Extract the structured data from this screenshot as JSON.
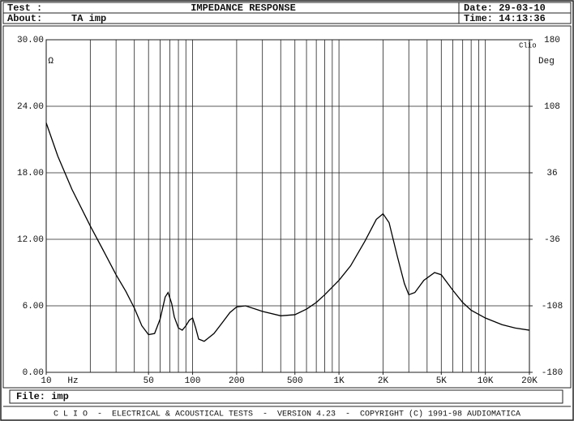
{
  "header": {
    "test_label": "Test :",
    "title": "IMPEDANCE RESPONSE",
    "date": "Date: 29-03-10",
    "about_label": "About:",
    "about": "TA imp",
    "time": "Time: 14:13:36"
  },
  "footer": {
    "file": "File: imp",
    "credits": "C L I O  -  ELECTRICAL & ACOUSTICAL TESTS  -  VERSION 4.23  -  COPYRIGHT (C) 1991-98 AUDIOMATICA"
  },
  "chart_data": {
    "type": "line",
    "brand": "Clio",
    "x_unit": "Hz",
    "y_unit": "Ω",
    "y2_unit": "Deg",
    "log_x": true,
    "grid": true,
    "color": "#000000",
    "x": [
      10,
      12,
      15,
      20,
      25,
      30,
      35,
      40,
      45,
      50,
      55,
      60,
      65,
      68,
      72,
      75,
      80,
      85,
      90,
      95,
      100,
      105,
      110,
      120,
      140,
      160,
      180,
      200,
      230,
      300,
      400,
      500,
      600,
      700,
      800,
      1000,
      1200,
      1500,
      1800,
      2000,
      2200,
      2500,
      2800,
      3000,
      3300,
      3800,
      4500,
      5000,
      6000,
      7000,
      8000,
      10000,
      13000,
      16000,
      20000
    ],
    "values": [
      22.5,
      19.5,
      16.5,
      13.2,
      10.8,
      8.8,
      7.3,
      5.8,
      4.2,
      3.4,
      3.5,
      4.8,
      6.8,
      7.2,
      6.2,
      5.0,
      4.0,
      3.8,
      4.2,
      4.7,
      4.9,
      4.0,
      3.0,
      2.8,
      3.5,
      4.5,
      5.4,
      5.9,
      6.0,
      5.5,
      5.1,
      5.2,
      5.7,
      6.3,
      7.0,
      8.3,
      9.6,
      11.8,
      13.8,
      14.3,
      13.5,
      10.5,
      8.0,
      7.0,
      7.2,
      8.3,
      9.0,
      8.8,
      7.4,
      6.3,
      5.6,
      4.9,
      4.3,
      4.0,
      3.8
    ],
    "xlim": [
      10,
      20000
    ],
    "xticks": [
      10,
      50,
      100,
      200,
      500,
      {
        "value": 1000,
        "label": "1K"
      },
      {
        "value": 2000,
        "label": "2K"
      },
      {
        "value": 5000,
        "label": "5K"
      },
      {
        "value": 10000,
        "label": "10K"
      },
      {
        "value": 20000,
        "label": "20K"
      }
    ],
    "xgrid": [
      20,
      30,
      40,
      50,
      60,
      70,
      80,
      90,
      100,
      200,
      300,
      400,
      500,
      600,
      700,
      800,
      900,
      1000,
      2000,
      3000,
      4000,
      5000,
      6000,
      7000,
      8000,
      9000,
      10000
    ],
    "ylim": [
      0,
      30
    ],
    "yticks": [
      {
        "value": 0,
        "label": "0.00"
      },
      {
        "value": 6,
        "label": "6.00"
      },
      {
        "value": 12,
        "label": "12.00"
      },
      {
        "value": 18,
        "label": "18.00"
      },
      {
        "value": 24,
        "label": "24.00"
      },
      {
        "value": 30,
        "label": "30.00"
      }
    ],
    "y2lim": [
      -180,
      180
    ],
    "y2ticks": [
      -180,
      -108,
      -36,
      36,
      108,
      180
    ]
  }
}
